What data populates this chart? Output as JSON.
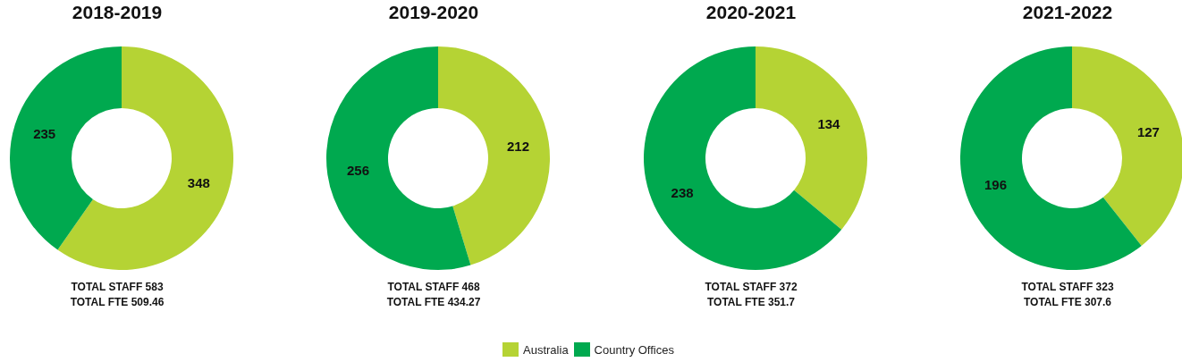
{
  "chart_data": [
    {
      "type": "donut",
      "title": "2018-2019",
      "categories": [
        "Australia",
        "Country Offices"
      ],
      "values": [
        348,
        235
      ],
      "colors": [
        "#b5d334",
        "#00a94f"
      ],
      "data_labels": true,
      "legend": "bottom",
      "annotations": [
        "TOTAL STAFF 583",
        "TOTAL FTE 509.46"
      ]
    },
    {
      "type": "donut",
      "title": "2019-2020",
      "categories": [
        null,
        null
      ],
      "values": [
        212,
        256
      ],
      "colors": [
        "#b5d334",
        "#00a94f"
      ],
      "data_labels": true,
      "annotations": [
        "TOTAL STAFF 468",
        "TOTAL FTE 434.27"
      ]
    },
    {
      "type": "donut",
      "title": "2020-2021",
      "categories": [
        null,
        null
      ],
      "values": [
        134,
        238
      ],
      "colors": [
        "#b5d334",
        "#00a94f"
      ],
      "data_labels": true,
      "annotations": [
        "TOTAL STAFF 372",
        "TOTAL FTE 351.7"
      ]
    },
    {
      "type": "donut",
      "title": "2021-2022",
      "categories": [
        null,
        null
      ],
      "values": [
        127,
        196
      ],
      "colors": [
        "#b5d334",
        "#00a94f"
      ],
      "data_labels": true,
      "annotations": [
        "TOTAL STAFF 323",
        "TOTAL FTE 307.6"
      ]
    }
  ]
}
